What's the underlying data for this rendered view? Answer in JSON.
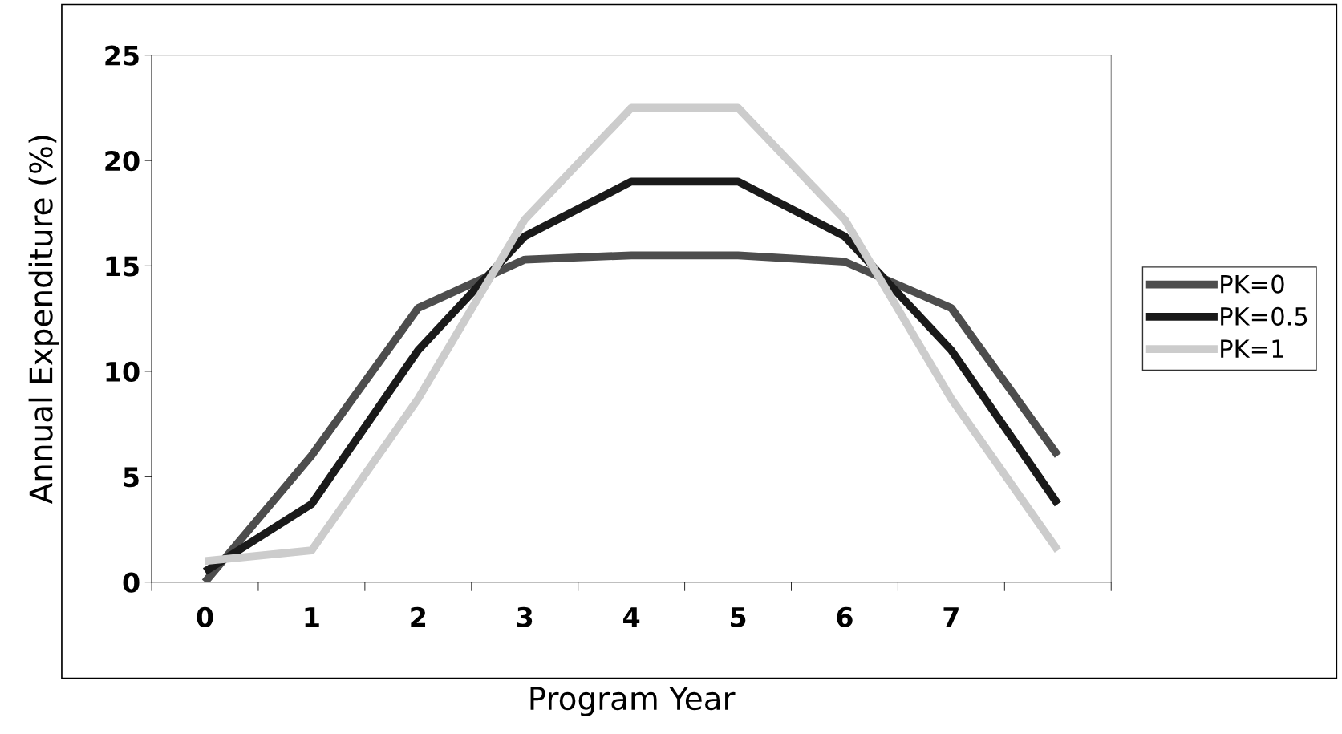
{
  "chart_data": {
    "type": "line",
    "xlabel": "Program Year",
    "ylabel": "Annual Expenditure (%)",
    "categories": [
      "0",
      "1",
      "2",
      "3",
      "4",
      "5",
      "6",
      "7",
      null
    ],
    "series": [
      {
        "name": "PK=0",
        "color": "#4d4d4d",
        "values": [
          0,
          6,
          13,
          15.3,
          15.5,
          15.5,
          15.2,
          13,
          6
        ]
      },
      {
        "name": "PK=0.5",
        "color": "#1a1a1a",
        "values": [
          0.5,
          3.7,
          11,
          16.4,
          19,
          19,
          16.4,
          11,
          3.7
        ]
      },
      {
        "name": "PK=1",
        "color": "#cccccc",
        "values": [
          1,
          1.5,
          8.7,
          17.2,
          22.5,
          22.5,
          17.2,
          8.7,
          1.5
        ]
      }
    ],
    "ylim": [
      0,
      25
    ],
    "yticks": [
      0,
      5,
      10,
      15,
      20,
      25
    ],
    "grid": false,
    "legend": "right",
    "marker": "none",
    "line_style": "solid"
  }
}
